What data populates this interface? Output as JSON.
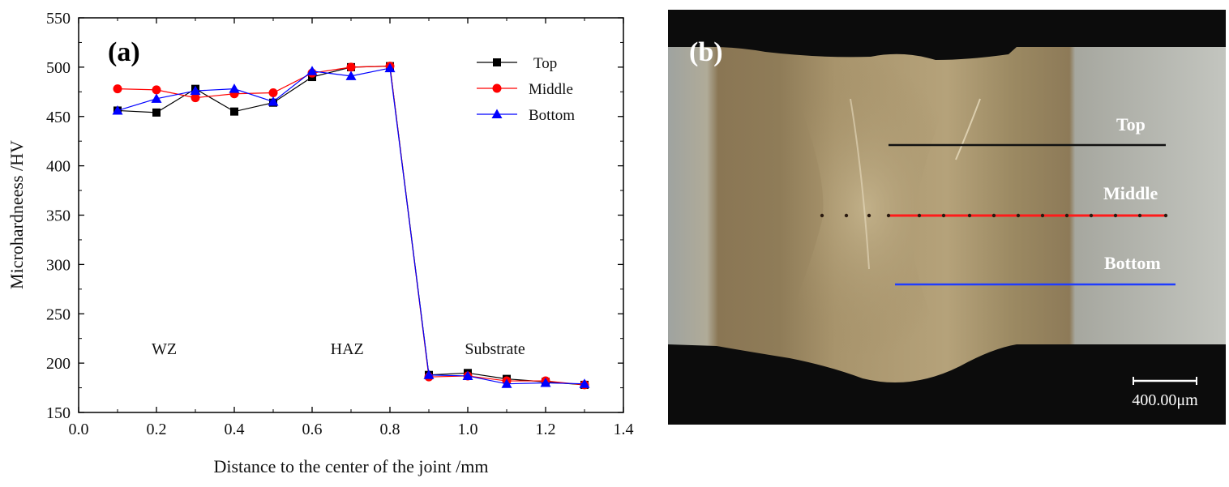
{
  "panel_a": {
    "label": "(a)"
  },
  "panel_b": {
    "label": "(b)",
    "line_labels": {
      "top": "Top",
      "middle": "Middle",
      "bottom": "Bottom"
    },
    "line_colors": {
      "top": "#111111",
      "middle": "#ff1a1a",
      "bottom": "#1f3cff"
    },
    "scale_bar": "400.00μm"
  },
  "colors": {
    "top": "#000000",
    "middle": "#ff0000",
    "bottom": "#0000ff"
  },
  "chart_data": {
    "type": "line",
    "title": "",
    "xlabel": "Distance to the center of the joint /mm",
    "ylabel": "Microhardneess /HV",
    "xlim": [
      0.0,
      1.4
    ],
    "ylim": [
      150,
      550
    ],
    "xticks": [
      "0.0",
      "0.2",
      "0.4",
      "0.6",
      "0.8",
      "1.0",
      "1.2",
      "1.4"
    ],
    "yticks": [
      "150",
      "200",
      "250",
      "300",
      "350",
      "400",
      "450",
      "500",
      "550"
    ],
    "legend_position": "top-right",
    "grid": false,
    "annotations": [
      {
        "text": "WZ",
        "x": 0.22,
        "y": 165
      },
      {
        "text": "HAZ",
        "x": 0.69,
        "y": 165
      },
      {
        "text": "Substrate",
        "x": 1.07,
        "y": 165
      }
    ],
    "x": [
      0.1,
      0.2,
      0.3,
      0.4,
      0.5,
      0.6,
      0.7,
      0.8,
      0.9,
      1.0,
      1.1,
      1.2,
      1.3
    ],
    "series": [
      {
        "name": "Top",
        "marker": "square",
        "color": "#000000",
        "values": [
          456,
          454,
          478,
          455,
          464,
          490,
          500,
          501,
          188,
          190,
          184,
          181,
          178
        ]
      },
      {
        "name": "Middle",
        "marker": "circle",
        "color": "#ff0000",
        "values": [
          478,
          477,
          469,
          473,
          474,
          494,
          500,
          501,
          186,
          187,
          182,
          182,
          178
        ]
      },
      {
        "name": "Bottom",
        "marker": "triangle",
        "color": "#0000ff",
        "values": [
          456,
          468,
          476,
          478,
          465,
          496,
          491,
          499,
          188,
          187,
          179,
          180,
          179
        ]
      }
    ]
  }
}
